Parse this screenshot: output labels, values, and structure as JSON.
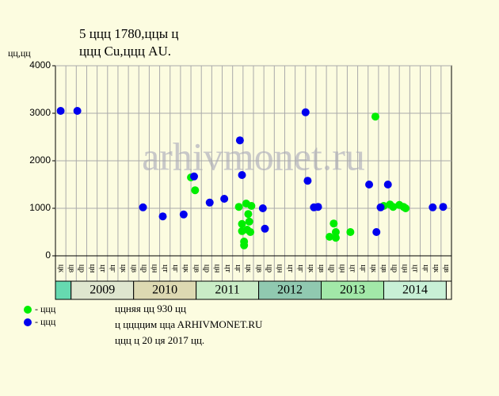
{
  "chart_data": {
    "type": "scatter",
    "title_lines": [
      "5 ццц 1780,ццы ц",
      "ццц Cu,ццц AU."
    ],
    "y_label": "цц,цц",
    "watermark": "arhivmonet.ru",
    "ylim": [
      0,
      4000
    ],
    "yticks": [
      0,
      1000,
      2000,
      3000,
      4000
    ],
    "grid": true,
    "xlim": [
      0,
      38
    ],
    "x_labels": [
      "цк",
      "цв",
      "цр",
      "цн",
      "цт",
      "цг",
      "цк",
      "цв",
      "цр",
      "цн",
      "цт",
      "цг",
      "цк",
      "цв",
      "цр",
      "цн",
      "цт",
      "цг",
      "цк",
      "цв",
      "цр",
      "цн",
      "цт",
      "цг",
      "цк",
      "цв",
      "цр",
      "цн",
      "цт",
      "цг",
      "цк",
      "цв",
      "цр",
      "цн",
      "цт",
      "цг",
      "цк",
      "цв"
    ],
    "years": [
      {
        "label": "2009",
        "start": 1.5,
        "end": 7.5,
        "color": "#dfe6cf"
      },
      {
        "label": "2010",
        "start": 7.5,
        "end": 13.5,
        "color": "#ddd9b2"
      },
      {
        "label": "2011",
        "start": 13.5,
        "end": 19.5,
        "color": "#c9ecc6"
      },
      {
        "label": "2012",
        "start": 19.5,
        "end": 25.5,
        "color": "#90c9b0"
      },
      {
        "label": "2013",
        "start": 25.5,
        "end": 31.5,
        "color": "#a2e8a8"
      },
      {
        "label": "2014",
        "start": 31.5,
        "end": 37.5,
        "color": "#c8f0d6"
      }
    ],
    "first_band_color": "#66d9b0",
    "series": [
      {
        "name": "- ццц",
        "color": "#00ee00",
        "x": [
          13.0,
          13.4,
          17.6,
          17.9,
          17.9,
          18.1,
          18.1,
          18.3,
          18.4,
          18.5,
          18.6,
          18.7,
          18.8,
          26.3,
          26.7,
          26.9,
          26.9,
          28.3,
          30.7,
          31.5,
          32.1,
          32.4,
          33.0,
          33.4,
          33.6
        ],
        "values": [
          1650,
          1380,
          1030,
          670,
          520,
          220,
          300,
          1100,
          550,
          880,
          720,
          500,
          1050,
          400,
          680,
          500,
          380,
          500,
          2930,
          1050,
          1080,
          1030,
          1070,
          1030,
          1000
        ]
      },
      {
        "name": "- ццц",
        "color": "#0000ee",
        "x": [
          0.5,
          2.1,
          8.4,
          10.3,
          12.3,
          13.3,
          14.8,
          16.2,
          17.7,
          17.9,
          19.9,
          20.1,
          24.0,
          24.2,
          24.8,
          25.2,
          30.1,
          30.8,
          31.2,
          31.9,
          36.2,
          37.2
        ],
        "values": [
          3050,
          3050,
          1020,
          830,
          870,
          1670,
          1120,
          1200,
          2430,
          1700,
          1000,
          570,
          3020,
          1580,
          1020,
          1030,
          1500,
          500,
          1020,
          1500,
          1020,
          1030
        ]
      }
    ],
    "notes": [
      "ццняя цц 930 цц",
      "ц ццццим ццa ARHIVMONET.RU",
      "ццц ц 20 ця 2017 цц."
    ]
  }
}
